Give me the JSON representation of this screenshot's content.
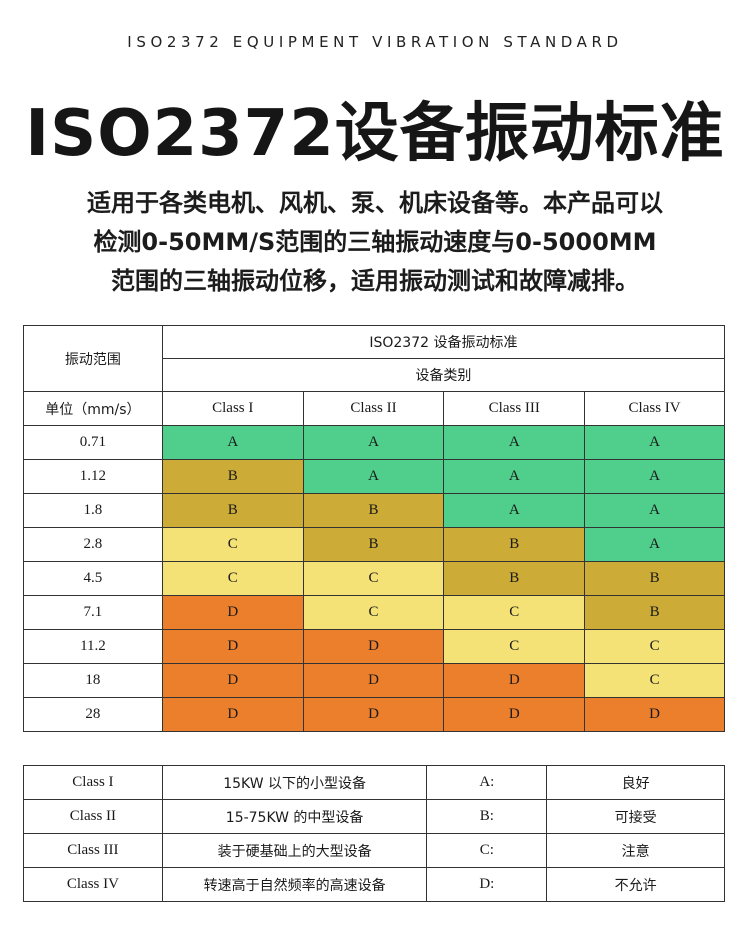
{
  "header": {
    "subtitle": "ISO2372 EQUIPMENT VIBRATION STANDARD",
    "title": "ISO2372设备振动标准",
    "description_lines": [
      "适用于各类电机、风机、泵、机床设备等。本产品可以",
      "检测0-50MM/S范围的三轴振动速度与0-5000MM",
      "范围的三轴振动位移，适用振动测试和故障减排。"
    ]
  },
  "table": {
    "range_label": "振动范围",
    "standard_label": "ISO2372 设备振动标准",
    "category_label": "设备类别",
    "unit_label": "单位（mm/s）",
    "classes": [
      "Class I",
      "Class II",
      "Class III",
      "Class IV"
    ],
    "rows": [
      {
        "value": "0.71",
        "grades": [
          "A",
          "A",
          "A",
          "A"
        ]
      },
      {
        "value": "1.12",
        "grades": [
          "B",
          "A",
          "A",
          "A"
        ]
      },
      {
        "value": "1.8",
        "grades": [
          "B",
          "B",
          "A",
          "A"
        ]
      },
      {
        "value": "2.8",
        "grades": [
          "C",
          "B",
          "B",
          "A"
        ]
      },
      {
        "value": "4.5",
        "grades": [
          "C",
          "C",
          "B",
          "B"
        ]
      },
      {
        "value": "7.1",
        "grades": [
          "D",
          "C",
          "C",
          "B"
        ]
      },
      {
        "value": "11.2",
        "grades": [
          "D",
          "D",
          "C",
          "C"
        ]
      },
      {
        "value": "18",
        "grades": [
          "D",
          "D",
          "D",
          "C"
        ]
      },
      {
        "value": "28",
        "grades": [
          "D",
          "D",
          "D",
          "D"
        ]
      }
    ],
    "grade_colors": {
      "A": "#4fcf8b",
      "B": "#ccab36",
      "C": "#f4e277",
      "D": "#ec7f2c"
    }
  },
  "legend": {
    "rows": [
      {
        "class": "Class I",
        "description": "15KW 以下的小型设备",
        "grade": "A:",
        "meaning": "良好"
      },
      {
        "class": "Class II",
        "description": "15-75KW 的中型设备",
        "grade": "B:",
        "meaning": "可接受"
      },
      {
        "class": "Class III",
        "description": "装于硬基础上的大型设备",
        "grade": "C:",
        "meaning": "注意"
      },
      {
        "class": "Class IV",
        "description": "转速高于自然频率的高速设备",
        "grade": "D:",
        "meaning": "不允许"
      }
    ]
  }
}
